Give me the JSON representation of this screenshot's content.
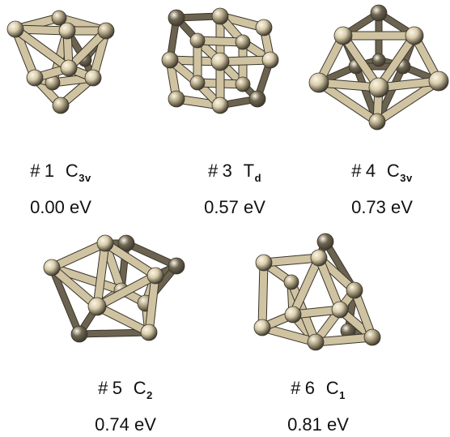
{
  "colors": {
    "atom_front": "#d9ccaa",
    "atom_mid": "#b5a886",
    "atom_back": "#6f6652",
    "rod_front": "#cfc3a2",
    "rod_back": "#6b6350",
    "background": "#ffffff"
  },
  "clusters": [
    {
      "id": "c1",
      "number": "1",
      "symmetry_main": "C",
      "symmetry_sub": "3v",
      "energy": "0.00 eV"
    },
    {
      "id": "c3",
      "number": "3",
      "symmetry_main": "T",
      "symmetry_sub": "d",
      "energy": "0.57 eV"
    },
    {
      "id": "c4",
      "number": "4",
      "symmetry_main": "C",
      "symmetry_sub": "3v",
      "energy": "0.73 eV"
    },
    {
      "id": "c5",
      "number": "5",
      "symmetry_main": "C",
      "symmetry_sub": "2",
      "energy": "0.74 eV"
    },
    {
      "id": "c6",
      "number": "6",
      "symmetry_main": "C",
      "symmetry_sub": "1",
      "energy": "0.81 eV"
    }
  ]
}
